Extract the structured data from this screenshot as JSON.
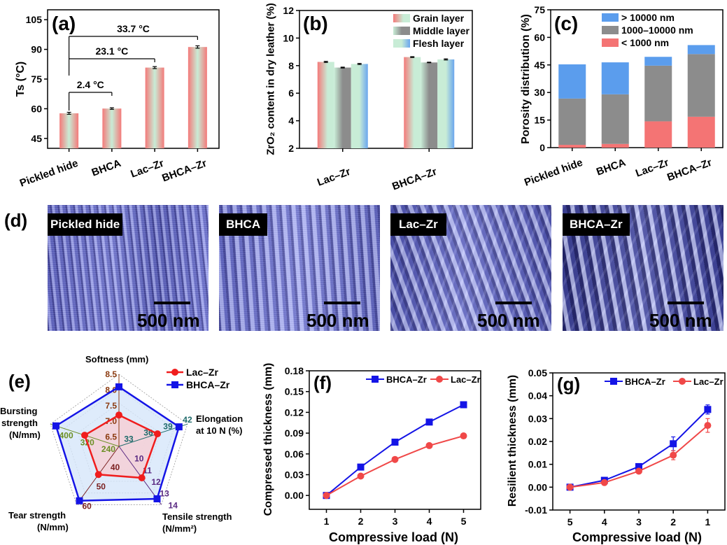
{
  "panel_letters": {
    "a": "(a)",
    "b": "(b)",
    "c": "(c)",
    "d": "(d)",
    "e": "(e)",
    "f": "(f)",
    "g": "(g)"
  },
  "sem_images": {
    "labels": [
      "Pickled hide",
      "BHCA",
      "Lac–Zr",
      "BHCA–Zr"
    ],
    "scale_bar": "500 nm",
    "colors": {
      "fiber": "#8c91dd",
      "background": "#5b5fb5"
    }
  },
  "chart_data": [
    {
      "type": "bar",
      "panel": "a",
      "categories": [
        "Pickled hide",
        "BHCA",
        "Lac–Zr",
        "BHCA–Zr"
      ],
      "values": [
        57.7,
        60.1,
        80.8,
        91.2
      ],
      "errors": [
        0.5,
        0.4,
        0.5,
        0.6
      ],
      "ylabel": "Ts (°C)",
      "ylim": [
        40,
        110
      ],
      "yticks": [
        "45",
        "60",
        "75",
        "90",
        "105"
      ],
      "annotations": [
        "2.4 °C",
        "23.1 °C",
        "33.7 °C"
      ],
      "colors": {
        "edge": "#f47a7a",
        "center": "#c8ecd6"
      }
    },
    {
      "type": "bar",
      "panel": "b",
      "categories": [
        "Lac–Zr",
        "BHCA–Zr"
      ],
      "series": [
        {
          "name": "Grain layer",
          "values": [
            8.27,
            8.62
          ],
          "errors": [
            0.04,
            0.03
          ],
          "color": "#f47a7a"
        },
        {
          "name": "Middle layer",
          "values": [
            7.86,
            8.23
          ],
          "errors": [
            0.03,
            0.02
          ],
          "color": "#8c8c8c"
        },
        {
          "name": "Flesh layer",
          "values": [
            8.12,
            8.45
          ],
          "errors": [
            0.04,
            0.04
          ],
          "color": "#6aa6ee"
        }
      ],
      "ylabel": "ZrO₂ content in dry leather (%)",
      "ylim": [
        2,
        12
      ],
      "yticks": [
        "2",
        "4",
        "6",
        "8",
        "10",
        "12"
      ],
      "legend": "top-right"
    },
    {
      "type": "bar",
      "stacked": true,
      "panel": "c",
      "categories": [
        "Pickled hide",
        "BHCA",
        "Lac–Zr",
        "BHCA–Zr"
      ],
      "series": [
        {
          "name": "< 1000 nm",
          "values": [
            1.5,
            2.0,
            14.3,
            16.8
          ],
          "color": "#f47474"
        },
        {
          "name": "1000–10000 nm",
          "values": [
            25.2,
            27.0,
            30.3,
            34.1
          ],
          "color": "#8c8c8c"
        },
        {
          "name": "> 10000 nm",
          "values": [
            18.6,
            17.4,
            4.8,
            4.9
          ],
          "color": "#5b9ded"
        }
      ],
      "legend_order": [
        2,
        1,
        0
      ],
      "ylabel": "Porosity distribution (%)",
      "ylim": [
        0,
        75
      ],
      "yticks": [
        "0",
        "15",
        "30",
        "45",
        "60",
        "75"
      ],
      "legend": "top-right"
    },
    {
      "type": "radar",
      "panel": "e",
      "axes": [
        {
          "name": "Softness (mm)",
          "lines": [
            "Softness (mm)"
          ],
          "min": 6.2,
          "max": 8.5,
          "ticks": [
            "6.5",
            "7.0",
            "7.5",
            "8.0",
            "8.5"
          ],
          "color": "#8b3a0f"
        },
        {
          "name": "Elongation at 10 N (%)",
          "lines": [
            "Elongation",
            "at 10 N (%)"
          ],
          "min": 31.5,
          "max": 42,
          "ticks": [
            "33",
            "36",
            "39",
            "42"
          ],
          "color": "#1f6b6b"
        },
        {
          "name": "Tensile strength (N/mm²)",
          "lines": [
            "Tensile strength",
            "(N/mm²)"
          ],
          "min": 9,
          "max": 14,
          "ticks": [
            "10",
            "11",
            "12",
            "13",
            "14"
          ],
          "color": "#5a2a82"
        },
        {
          "name": "Tear strength (N/mm)",
          "lines": [
            "Tear strength",
            "(N/mm)"
          ],
          "min": 30,
          "max": 60,
          "ticks": [
            "40",
            "50",
            "60"
          ],
          "color": "#7a1f1f"
        },
        {
          "name": "Bursting strength (N/mm)",
          "lines": [
            "Bursting",
            "strength",
            "(N/mm)"
          ],
          "min": 200,
          "max": 460,
          "ticks": [
            "240",
            "320",
            "400"
          ],
          "color": "#6b8e23"
        }
      ],
      "series": [
        {
          "name": "Lac–Zr",
          "values": [
            7.2,
            37.4,
            11.7,
            44.5,
            330
          ],
          "color": "#f01d1d",
          "fill": "#f4d2d8",
          "marker": "circle"
        },
        {
          "name": "BHCA–Zr",
          "values": [
            8.1,
            40.7,
            13.5,
            58,
            439
          ],
          "color": "#1414e6",
          "fill": "#d6e6fa",
          "marker": "square"
        }
      ],
      "legend": "top-right"
    },
    {
      "type": "line",
      "panel": "f",
      "x": [
        1,
        2,
        3,
        4,
        5
      ],
      "series": [
        {
          "name": "BHCA–Zr",
          "values": [
            0,
            0.041,
            0.077,
            0.106,
            0.131
          ],
          "errors": [
            0,
            0.001,
            0.001,
            0.001,
            0.002
          ],
          "color": "#1414e6",
          "marker": "square"
        },
        {
          "name": "Lac–Zr",
          "values": [
            0,
            0.028,
            0.052,
            0.072,
            0.086
          ],
          "errors": [
            0,
            0.001,
            0.001,
            0.001,
            0.003
          ],
          "color": "#f04848",
          "marker": "circle"
        }
      ],
      "xlabel": "Compressive load (N)",
      "ylabel": "Compressed thickness (mm)",
      "xlim": [
        0.5,
        5.5
      ],
      "ylim": [
        -0.02,
        0.18
      ],
      "xticks": [
        "1",
        "2",
        "3",
        "4",
        "5"
      ],
      "yticks": [
        "0.00",
        "0.03",
        "0.06",
        "0.09",
        "0.12",
        "0.15",
        "0.18"
      ],
      "legend": "top-right"
    },
    {
      "type": "line",
      "panel": "g",
      "x": [
        5,
        4,
        3,
        2,
        1
      ],
      "series": [
        {
          "name": "BHCA–Zr",
          "values": [
            0,
            0.003,
            0.009,
            0.019,
            0.034
          ],
          "errors": [
            0,
            0.0005,
            0.0005,
            0.003,
            0.002
          ],
          "color": "#1414e6",
          "marker": "square"
        },
        {
          "name": "Lac–Zr",
          "values": [
            0,
            0.002,
            0.007,
            0.014,
            0.027
          ],
          "errors": [
            0,
            0.0005,
            0.0005,
            0.002,
            0.003
          ],
          "color": "#f04848",
          "marker": "circle"
        }
      ],
      "xlabel": "Compressive load (N)",
      "ylabel": "Resilient thickness (mm)",
      "xlim": [
        5.5,
        0.5
      ],
      "ylim": [
        -0.01,
        0.05
      ],
      "xticks": [
        "5",
        "4",
        "3",
        "2",
        "1"
      ],
      "yticks": [
        "-0.01",
        "0.00",
        "0.01",
        "0.02",
        "0.03",
        "0.04",
        "0.05"
      ],
      "legend": "top-right"
    }
  ]
}
